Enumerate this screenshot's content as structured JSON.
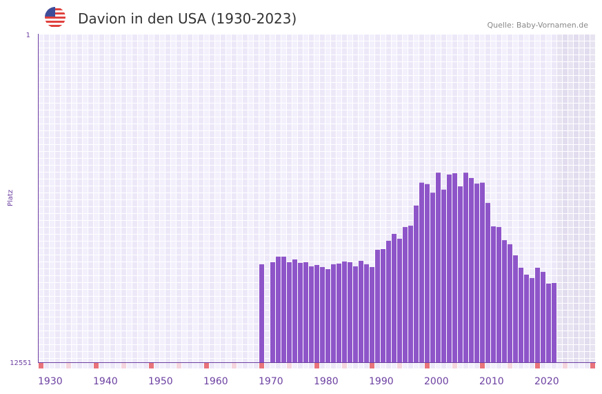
{
  "chart_data": {
    "type": "bar",
    "title": "Davion in den USA (1930-2023)",
    "source": "Quelle: Baby-Vornamen.de",
    "ylabel": "Platz",
    "yscale": "log",
    "ylim": [
      1,
      12551
    ],
    "y_ticks": [
      "1",
      "12551"
    ],
    "xlim": [
      1930,
      2030
    ],
    "x_ticks": [
      "1930",
      "1940",
      "1950",
      "1960",
      "1970",
      "1980",
      "1990",
      "2000",
      "2010",
      "2020"
    ],
    "future_from": 2024,
    "grid": true,
    "colors": {
      "bar": "#8e55c9",
      "axis": "#6b3fa0",
      "decade_marker": "#e8737a",
      "half_decade_marker": "#f5d5de",
      "future_shade": "#e4dff0"
    },
    "x": [
      1970,
      1972,
      1973,
      1974,
      1975,
      1976,
      1977,
      1978,
      1979,
      1980,
      1981,
      1982,
      1983,
      1984,
      1985,
      1986,
      1987,
      1988,
      1989,
      1990,
      1991,
      1992,
      1993,
      1994,
      1995,
      1996,
      1997,
      1998,
      1999,
      2000,
      2001,
      2002,
      2003,
      2004,
      2005,
      2006,
      2007,
      2008,
      2009,
      2010,
      2011,
      2012,
      2013,
      2014,
      2015,
      2016,
      2017,
      2018,
      2019,
      2020,
      2021,
      2022,
      2023
    ],
    "values": [
      752,
      708,
      604,
      604,
      708,
      654,
      722,
      708,
      798,
      767,
      814,
      864,
      752,
      737,
      695,
      708,
      798,
      681,
      752,
      814,
      496,
      486,
      383,
      314,
      361,
      258,
      248,
      139,
      72,
      75,
      96,
      54,
      88,
      57,
      55,
      80,
      54,
      63,
      74,
      72,
      129,
      253,
      258,
      376,
      423,
      581,
      830,
      1012,
      1117,
      830,
      935,
      1309,
      1285
    ]
  }
}
